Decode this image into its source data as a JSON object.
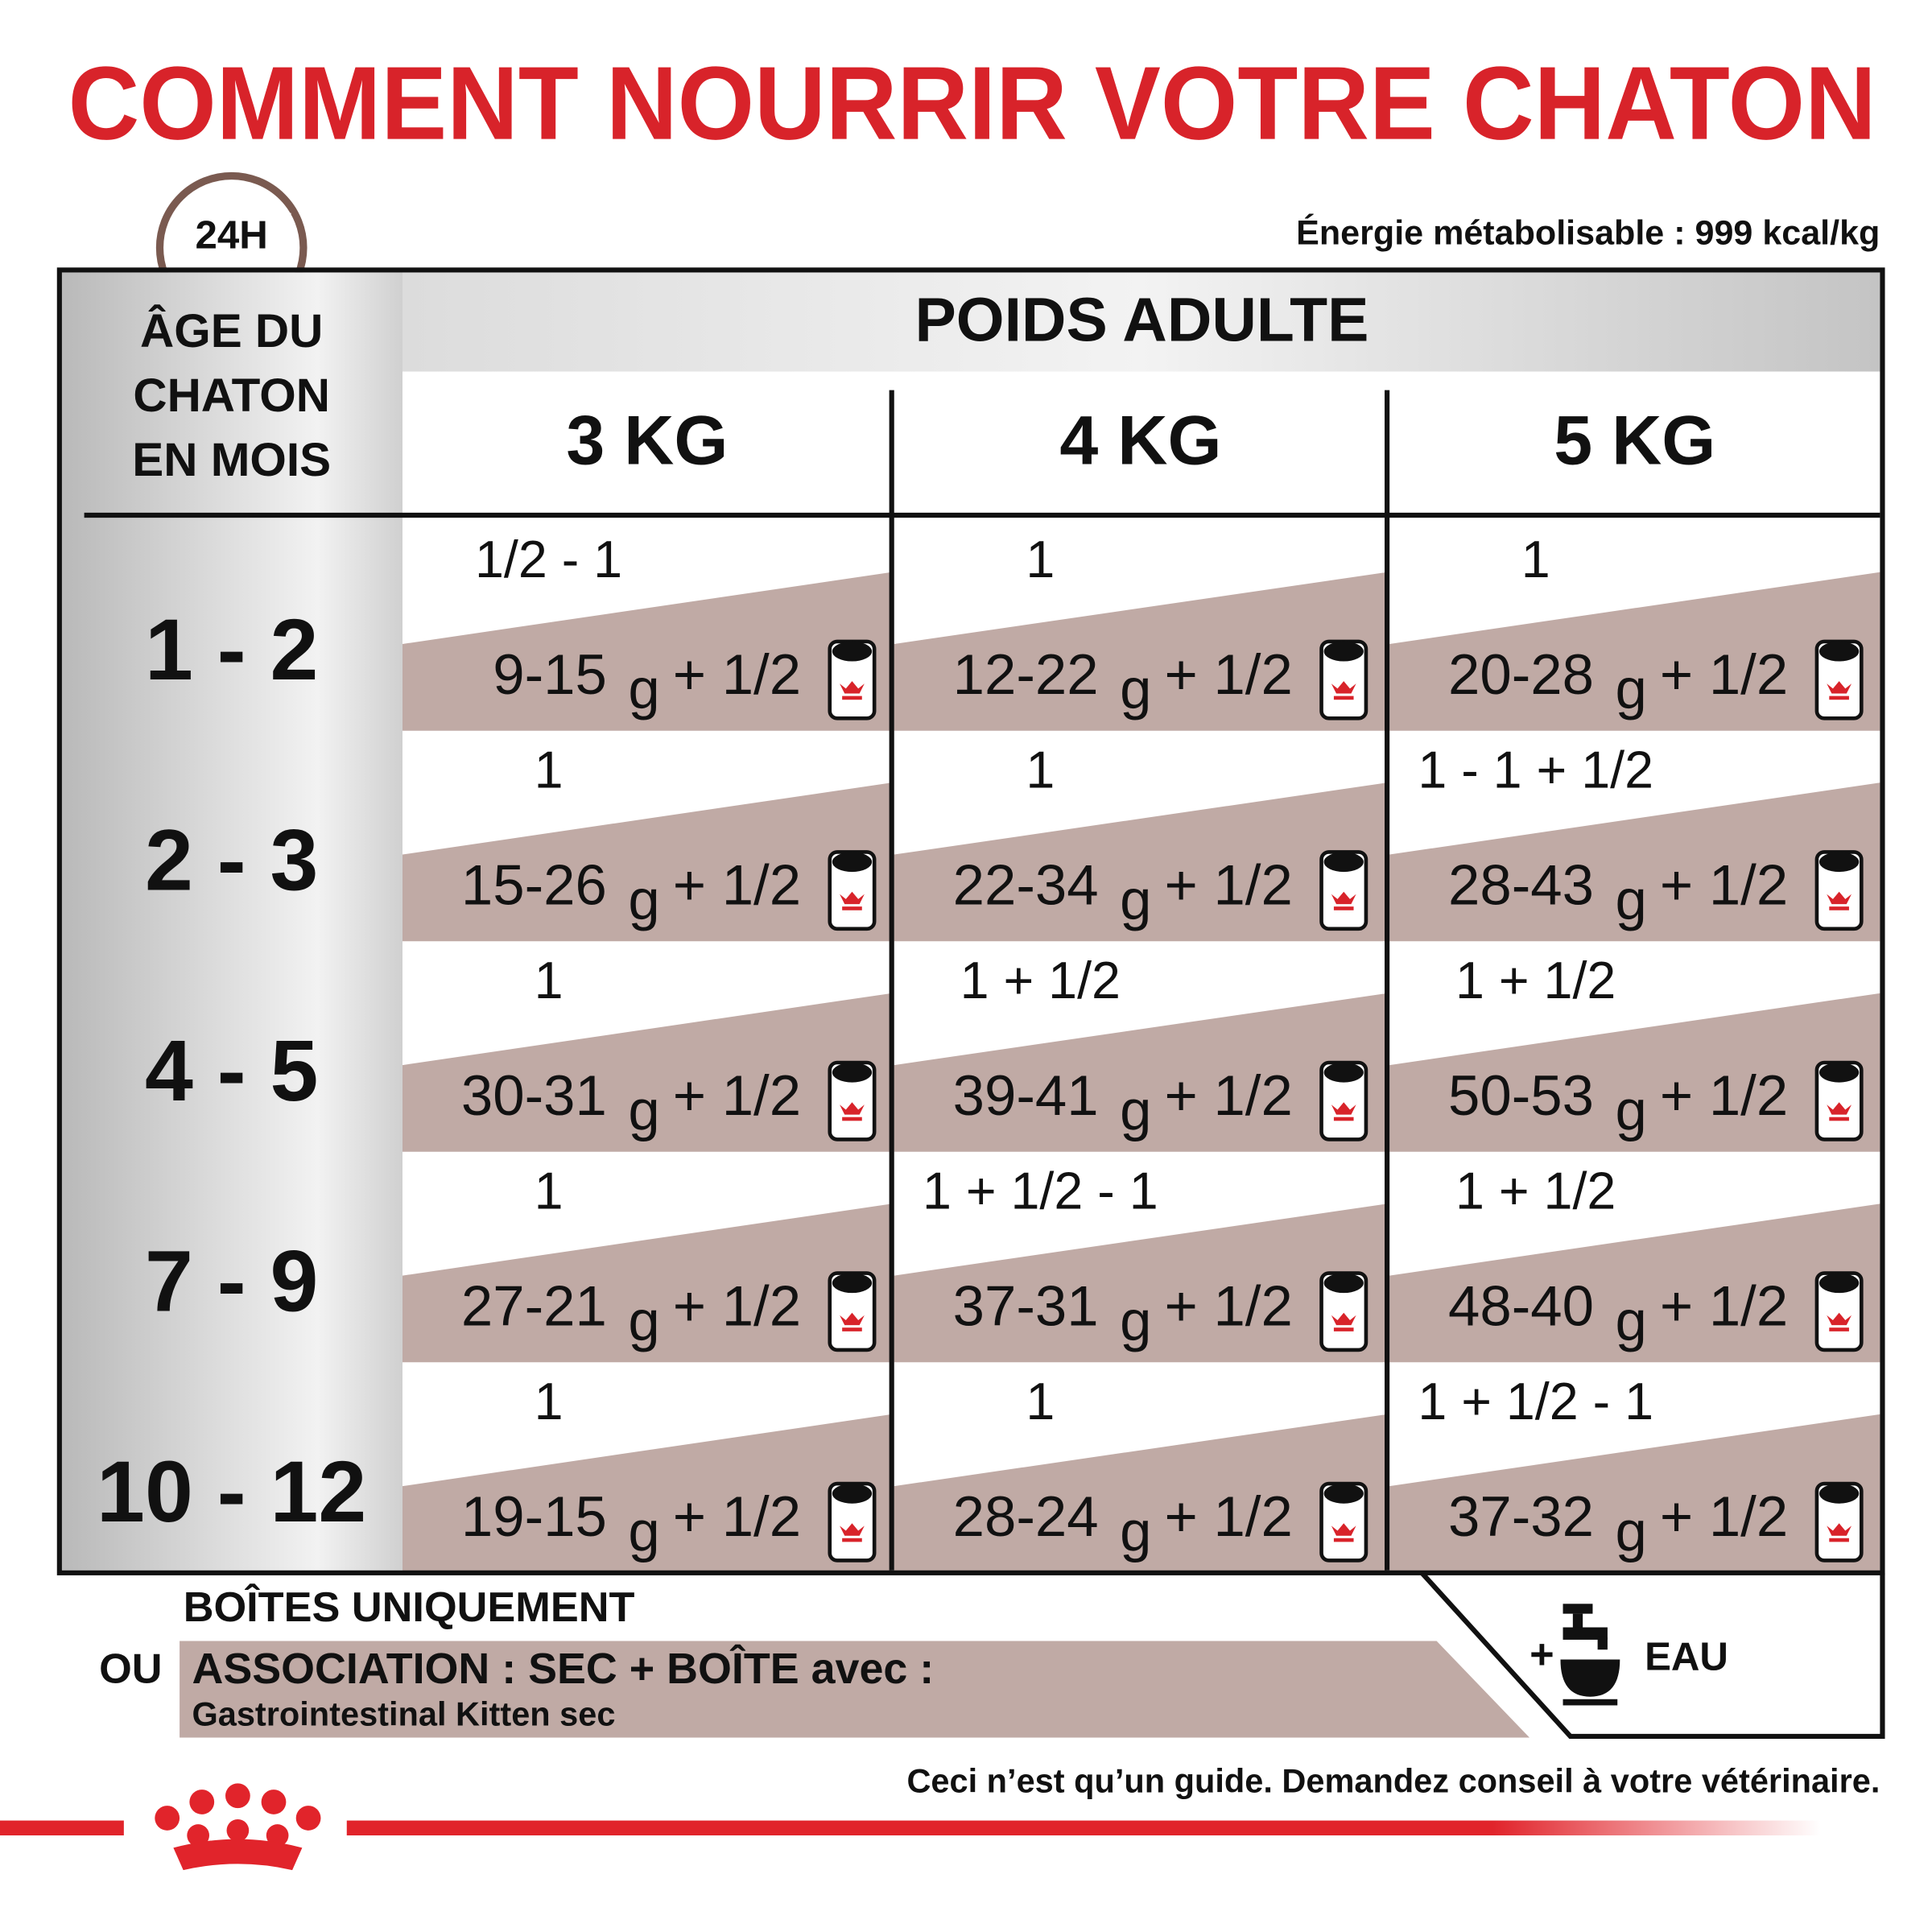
{
  "header": {
    "title": "COMMENT NOURRIR VOTRE CHATON",
    "clock": "24H",
    "energy": "Énergie métabolisable : 999 kcal/kg"
  },
  "table": {
    "age_header": [
      "ÂGE DU",
      "CHATON",
      "EN MOIS"
    ],
    "weight_header": "POIDS ADULTE",
    "weights": [
      "3 KG",
      "4 KG",
      "5 KG"
    ],
    "rows": [
      {
        "age": "1 - 2",
        "cells": [
          {
            "cans": "1/2 - 1",
            "dry": "9-15",
            "unit": "g",
            "plus": "+ 1/2"
          },
          {
            "cans": "1",
            "dry": "12-22",
            "unit": "g",
            "plus": "+ 1/2"
          },
          {
            "cans": "1",
            "dry": "20-28",
            "unit": "g",
            "plus": "+ 1/2"
          }
        ]
      },
      {
        "age": "2 - 3",
        "cells": [
          {
            "cans": "1",
            "dry": "15-26",
            "unit": "g",
            "plus": "+ 1/2"
          },
          {
            "cans": "1",
            "dry": "22-34",
            "unit": "g",
            "plus": "+ 1/2"
          },
          {
            "cans": "1 - 1 + 1/2",
            "dry": "28-43",
            "unit": "g",
            "plus": "+ 1/2"
          }
        ]
      },
      {
        "age": "4 - 5",
        "cells": [
          {
            "cans": "1",
            "dry": "30-31",
            "unit": "g",
            "plus": "+ 1/2"
          },
          {
            "cans": "1 + 1/2",
            "dry": "39-41",
            "unit": "g",
            "plus": "+ 1/2"
          },
          {
            "cans": "1 + 1/2",
            "dry": "50-53",
            "unit": "g",
            "plus": "+ 1/2"
          }
        ]
      },
      {
        "age": "7 - 9",
        "cells": [
          {
            "cans": "1",
            "dry": "27-21",
            "unit": "g",
            "plus": "+ 1/2"
          },
          {
            "cans": "1 + 1/2 - 1",
            "dry": "37-31",
            "unit": "g",
            "plus": "+ 1/2"
          },
          {
            "cans": "1 + 1/2",
            "dry": "48-40",
            "unit": "g",
            "plus": "+ 1/2"
          }
        ]
      },
      {
        "age": "10 - 12",
        "cells": [
          {
            "cans": "1",
            "dry": "19-15",
            "unit": "g",
            "plus": "+ 1/2"
          },
          {
            "cans": "1",
            "dry": "28-24",
            "unit": "g",
            "plus": "+ 1/2"
          },
          {
            "cans": "1 + 1/2 - 1",
            "dry": "37-32",
            "unit": "g",
            "plus": "+ 1/2"
          }
        ]
      }
    ]
  },
  "legend": {
    "cans_only": "BOÎTES UNIQUEMENT",
    "or": "OU",
    "mix": "ASSOCIATION : SEC + BOÎTE avec :",
    "mix_product": "Gastrointestinal Kitten sec",
    "plus": "+",
    "water": "EAU"
  },
  "footer": {
    "disclaimer": "Ceci n’est qu’un guide. Demandez conseil à votre vétérinaire."
  }
}
